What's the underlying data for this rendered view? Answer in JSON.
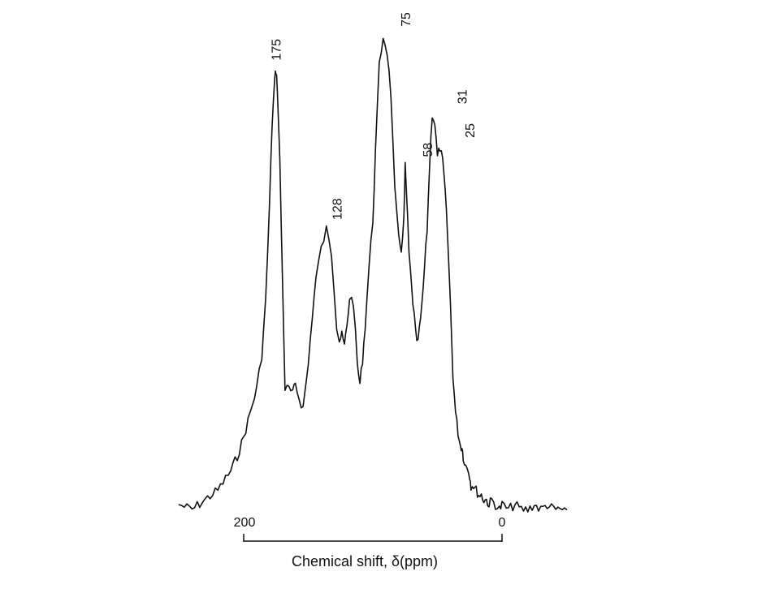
{
  "chart_data": {
    "type": "line",
    "xlabel": "Chemical shift, δ(ppm)",
    "x_reversed": true,
    "xlim": [
      250,
      -50
    ],
    "ylim": [
      0,
      1
    ],
    "grid": false,
    "legend": "none",
    "scale_bar": {
      "from": 200,
      "to": 0,
      "labels": [
        "200",
        "0"
      ]
    },
    "annotations": [
      {
        "text": "175",
        "x": 175,
        "y": 0.93
      },
      {
        "text": "128",
        "x": 128,
        "y": 0.6
      },
      {
        "text": "75",
        "x": 75,
        "y": 1.0
      },
      {
        "text": "58",
        "x": 58,
        "y": 0.73
      },
      {
        "text": "31",
        "x": 31,
        "y": 0.84
      },
      {
        "text": "25",
        "x": 25,
        "y": 0.77
      }
    ],
    "series": [
      {
        "color": "#111111",
        "x": [
          250,
          240,
          230,
          220,
          210,
          205,
          200,
          195,
          190,
          186,
          183,
          180,
          178,
          176,
          175,
          174,
          172,
          170,
          168,
          165,
          162,
          160,
          157,
          154,
          150,
          147,
          144,
          140,
          136,
          132,
          130,
          128,
          126,
          124,
          122,
          120,
          118,
          115,
          112,
          110,
          108,
          106,
          103,
          100,
          98,
          95,
          92,
          89,
          86,
          83,
          80,
          78,
          76,
          75,
          74,
          72,
          70,
          68,
          66,
          64,
          62,
          60,
          58,
          56,
          54,
          52,
          50,
          48,
          46,
          44,
          42,
          40,
          38,
          36,
          34,
          32,
          31,
          30,
          28,
          26,
          25,
          24,
          22,
          20,
          18,
          16,
          14,
          12,
          10,
          8,
          5,
          2,
          0,
          -5,
          -10,
          -15,
          -20,
          -25,
          -30,
          -35,
          -40,
          -45,
          -50
        ],
        "y": [
          0.03,
          0.02,
          0.04,
          0.06,
          0.1,
          0.13,
          0.17,
          0.22,
          0.27,
          0.34,
          0.45,
          0.65,
          0.82,
          0.91,
          0.93,
          0.9,
          0.74,
          0.5,
          0.27,
          0.27,
          0.26,
          0.28,
          0.25,
          0.23,
          0.32,
          0.42,
          0.5,
          0.56,
          0.6,
          0.55,
          0.48,
          0.4,
          0.37,
          0.38,
          0.36,
          0.4,
          0.46,
          0.45,
          0.32,
          0.28,
          0.33,
          0.4,
          0.52,
          0.62,
          0.76,
          0.94,
          1.0,
          0.97,
          0.88,
          0.68,
          0.58,
          0.56,
          0.62,
          0.73,
          0.68,
          0.55,
          0.48,
          0.42,
          0.36,
          0.39,
          0.44,
          0.52,
          0.6,
          0.74,
          0.84,
          0.82,
          0.75,
          0.77,
          0.74,
          0.68,
          0.58,
          0.45,
          0.3,
          0.22,
          0.18,
          0.15,
          0.15,
          0.13,
          0.11,
          0.1,
          0.09,
          0.07,
          0.07,
          0.06,
          0.05,
          0.05,
          0.04,
          0.04,
          0.03,
          0.04,
          0.03,
          0.02,
          0.03,
          0.02,
          0.03,
          0.02,
          0.02,
          0.03,
          0.02,
          0.03,
          0.02,
          0.02,
          0.02
        ]
      }
    ]
  }
}
